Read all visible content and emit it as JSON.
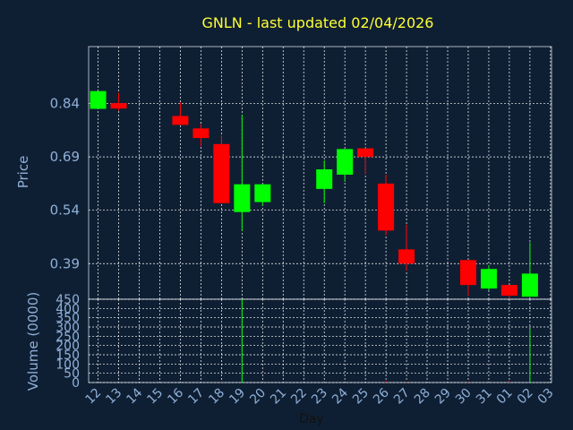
{
  "chart_data": {
    "type": "candlestick",
    "title": "GNLN - last updated 02/04/2026",
    "xlabel": "Day",
    "ylabel_price": "Price",
    "ylabel_volume": "Volume (0000)",
    "x_ticks": [
      "12",
      "13",
      "14",
      "15",
      "16",
      "17",
      "18",
      "19",
      "20",
      "21",
      "22",
      "23",
      "24",
      "25",
      "26",
      "27",
      "28",
      "29",
      "30",
      "31",
      "01",
      "02",
      "03"
    ],
    "price_ticks": [
      0.39,
      0.54,
      0.69,
      0.84
    ],
    "price_tick_labels": [
      "0.39",
      "0.54",
      "0.69",
      "0.84"
    ],
    "price_range": [
      0.29,
      1.0
    ],
    "volume_ticks": [
      0,
      50,
      100,
      150,
      200,
      250,
      300,
      350,
      400,
      450
    ],
    "volume_tick_labels": [
      "0",
      "50",
      "100",
      "150",
      "200",
      "250",
      "300",
      "350",
      "400",
      "450"
    ],
    "volume_range": [
      0,
      450
    ],
    "grid": true,
    "colors": {
      "background": "#0f1f33",
      "up": "#00ff00",
      "down": "#ff0000",
      "title": "#ffff33",
      "axis_text": "#8fb0d8",
      "grid": "#ffffff"
    },
    "candles": [
      {
        "x": 12.0,
        "open": 0.825,
        "high": 0.875,
        "low": 0.825,
        "close": 0.875
      },
      {
        "x": 13.0,
        "open": 0.841,
        "high": 0.87,
        "low": 0.82,
        "close": 0.826
      },
      {
        "x": 16.0,
        "open": 0.805,
        "high": 0.843,
        "low": 0.78,
        "close": 0.78
      },
      {
        "x": 17.0,
        "open": 0.77,
        "high": 0.783,
        "low": 0.72,
        "close": 0.743
      },
      {
        "x": 18.0,
        "open": 0.726,
        "high": 0.75,
        "low": 0.56,
        "close": 0.56
      },
      {
        "x": 19.0,
        "open": 0.535,
        "high": 0.808,
        "low": 0.482,
        "close": 0.613
      },
      {
        "x": 20.0,
        "open": 0.563,
        "high": 0.613,
        "low": 0.553,
        "close": 0.613
      },
      {
        "x": 23.0,
        "open": 0.6,
        "high": 0.68,
        "low": 0.56,
        "close": 0.655
      },
      {
        "x": 24.0,
        "open": 0.64,
        "high": 0.712,
        "low": 0.62,
        "close": 0.712
      },
      {
        "x": 25.0,
        "open": 0.714,
        "high": 0.714,
        "low": 0.642,
        "close": 0.69
      },
      {
        "x": 26.0,
        "open": 0.615,
        "high": 0.64,
        "low": 0.47,
        "close": 0.483
      },
      {
        "x": 27.0,
        "open": 0.43,
        "high": 0.5,
        "low": 0.37,
        "close": 0.39
      },
      {
        "x": 30.0,
        "open": 0.4,
        "high": 0.4,
        "low": 0.3,
        "close": 0.33
      },
      {
        "x": 31.0,
        "open": 0.32,
        "high": 0.385,
        "low": 0.315,
        "close": 0.375
      },
      {
        "x": 32.0,
        "open": 0.33,
        "high": 0.33,
        "low": 0.29,
        "close": 0.3
      },
      {
        "x": 33.0,
        "open": 0.297,
        "high": 0.45,
        "low": 0.297,
        "close": 0.362
      }
    ],
    "volume": [
      {
        "x": 18.0,
        "value": 8,
        "dir": "down"
      },
      {
        "x": 19.0,
        "value": 450,
        "dir": "up"
      },
      {
        "x": 26.0,
        "value": 10,
        "dir": "down"
      },
      {
        "x": 27.0,
        "value": 5,
        "dir": "down"
      },
      {
        "x": 30.0,
        "value": 6,
        "dir": "down"
      },
      {
        "x": 32.0,
        "value": 10,
        "dir": "down"
      },
      {
        "x": 33.0,
        "value": 290,
        "dir": "up"
      }
    ]
  }
}
